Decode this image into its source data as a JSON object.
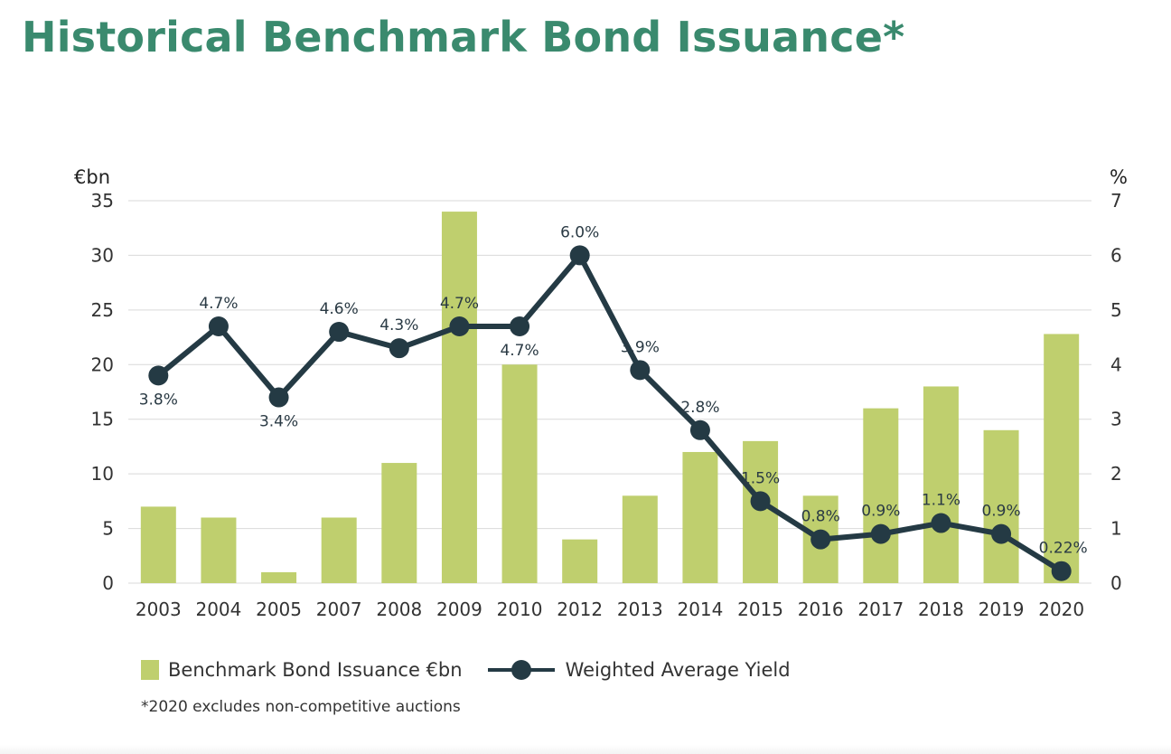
{
  "title": "Historical Benchmark Bond Issuance*",
  "footnote": "*2020 excludes non-competitive auctions",
  "colors": {
    "title": "#3a8a6e",
    "bar": "#bfcf6e",
    "line": "#243a44",
    "grid": "#d9d9d9"
  },
  "legend": {
    "bar_label": "Benchmark Bond Issuance €bn",
    "line_label": "Weighted Average Yield"
  },
  "chart_data": {
    "type": "bar",
    "title": "Historical Benchmark Bond Issuance*",
    "categories": [
      "2003",
      "2004",
      "2005",
      "2007",
      "2008",
      "2009",
      "2010",
      "2012",
      "2013",
      "2014",
      "2015",
      "2016",
      "2017",
      "2018",
      "2019",
      "2020"
    ],
    "series": [
      {
        "name": "Benchmark Bond Issuance €bn",
        "type": "bar",
        "axis": "left",
        "values": [
          7,
          6,
          1,
          6,
          11,
          34,
          20,
          4,
          8,
          12,
          13,
          8,
          16,
          18,
          14,
          22.8
        ]
      },
      {
        "name": "Weighted Average Yield",
        "type": "line",
        "axis": "right",
        "values": [
          3.8,
          4.7,
          3.4,
          4.6,
          4.3,
          4.7,
          4.7,
          6.0,
          3.9,
          2.8,
          1.5,
          0.8,
          0.9,
          1.1,
          0.9,
          0.22
        ],
        "labels": [
          "3.8%",
          "4.7%",
          "3.4%",
          "4.6%",
          "4.3%",
          "4.7%",
          "4.7%",
          "6.0%",
          "3.9%",
          "2.8%",
          "1.5%",
          "0.8%",
          "0.9%",
          "1.1%",
          "0.9%",
          "0.22%"
        ]
      }
    ],
    "left_axis": {
      "unit": "€bn",
      "ylim": [
        0,
        35
      ],
      "ticks": [
        "0",
        "5",
        "10",
        "15",
        "20",
        "25",
        "30",
        "35"
      ]
    },
    "right_axis": {
      "unit": "%",
      "ylim": [
        0,
        7
      ],
      "ticks": [
        "0",
        "1",
        "2",
        "3",
        "4",
        "5",
        "6",
        "7"
      ]
    },
    "grid": true,
    "legend_position": "bottom-left"
  }
}
